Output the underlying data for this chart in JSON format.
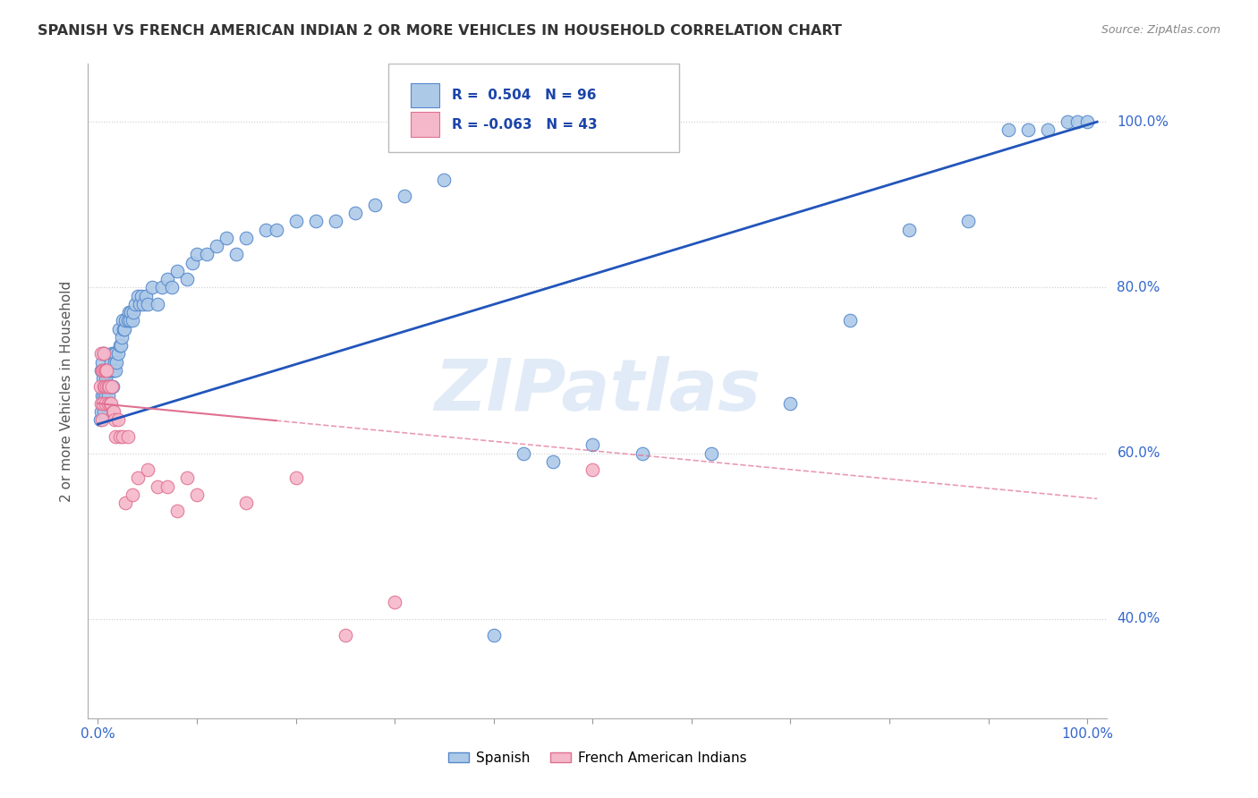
{
  "title": "SPANISH VS FRENCH AMERICAN INDIAN 2 OR MORE VEHICLES IN HOUSEHOLD CORRELATION CHART",
  "source": "Source: ZipAtlas.com",
  "ylabel": "2 or more Vehicles in Household",
  "yticks": [
    "40.0%",
    "60.0%",
    "80.0%",
    "100.0%"
  ],
  "ytick_vals": [
    0.4,
    0.6,
    0.8,
    1.0
  ],
  "legend_label_spanish": "Spanish",
  "legend_label_french": "French American Indians",
  "spanish_color": "#adc9e8",
  "french_color": "#f5b8cb",
  "spanish_edge": "#5588cc",
  "french_edge": "#e07090",
  "trend_spanish_color": "#2255bb",
  "trend_french_color": "#e07090",
  "background_color": "#ffffff",
  "grid_color": "#cccccc",
  "watermark": "ZIPatlas",
  "title_color": "#333333",
  "axis_label_color": "#3366cc",
  "spanish_R": 0.504,
  "spanish_N": 96,
  "french_R": -0.063,
  "french_N": 43,
  "sp_x": [
    0.002,
    0.003,
    0.003,
    0.004,
    0.004,
    0.005,
    0.005,
    0.005,
    0.006,
    0.006,
    0.006,
    0.007,
    0.007,
    0.007,
    0.008,
    0.008,
    0.009,
    0.009,
    0.01,
    0.01,
    0.011,
    0.011,
    0.012,
    0.012,
    0.013,
    0.013,
    0.014,
    0.015,
    0.015,
    0.016,
    0.016,
    0.017,
    0.018,
    0.018,
    0.019,
    0.02,
    0.021,
    0.022,
    0.023,
    0.024,
    0.025,
    0.026,
    0.027,
    0.028,
    0.03,
    0.031,
    0.032,
    0.033,
    0.035,
    0.036,
    0.038,
    0.04,
    0.042,
    0.044,
    0.046,
    0.048,
    0.05,
    0.055,
    0.06,
    0.065,
    0.07,
    0.075,
    0.08,
    0.09,
    0.095,
    0.1,
    0.11,
    0.12,
    0.13,
    0.14,
    0.15,
    0.17,
    0.18,
    0.2,
    0.22,
    0.24,
    0.26,
    0.28,
    0.31,
    0.35,
    0.4,
    0.43,
    0.46,
    0.5,
    0.55,
    0.62,
    0.7,
    0.76,
    0.82,
    0.88,
    0.92,
    0.94,
    0.96,
    0.98,
    0.99,
    1.0
  ],
  "sp_y": [
    0.64,
    0.65,
    0.7,
    0.67,
    0.71,
    0.66,
    0.69,
    0.72,
    0.65,
    0.67,
    0.72,
    0.66,
    0.68,
    0.7,
    0.67,
    0.69,
    0.66,
    0.68,
    0.67,
    0.7,
    0.68,
    0.7,
    0.68,
    0.7,
    0.68,
    0.71,
    0.72,
    0.68,
    0.7,
    0.7,
    0.72,
    0.71,
    0.7,
    0.72,
    0.71,
    0.72,
    0.75,
    0.73,
    0.73,
    0.74,
    0.76,
    0.75,
    0.75,
    0.76,
    0.76,
    0.77,
    0.76,
    0.77,
    0.76,
    0.77,
    0.78,
    0.79,
    0.78,
    0.79,
    0.78,
    0.79,
    0.78,
    0.8,
    0.78,
    0.8,
    0.81,
    0.8,
    0.82,
    0.81,
    0.83,
    0.84,
    0.84,
    0.85,
    0.86,
    0.84,
    0.86,
    0.87,
    0.87,
    0.88,
    0.88,
    0.88,
    0.89,
    0.9,
    0.91,
    0.93,
    0.38,
    0.6,
    0.59,
    0.61,
    0.6,
    0.6,
    0.66,
    0.76,
    0.87,
    0.88,
    0.99,
    0.99,
    0.99,
    1.0,
    1.0,
    1.0
  ],
  "fr_x": [
    0.002,
    0.003,
    0.003,
    0.004,
    0.004,
    0.005,
    0.005,
    0.006,
    0.006,
    0.007,
    0.007,
    0.008,
    0.008,
    0.009,
    0.009,
    0.01,
    0.01,
    0.011,
    0.012,
    0.013,
    0.014,
    0.015,
    0.016,
    0.017,
    0.018,
    0.02,
    0.022,
    0.025,
    0.028,
    0.03,
    0.035,
    0.04,
    0.05,
    0.06,
    0.07,
    0.08,
    0.09,
    0.1,
    0.15,
    0.2,
    0.25,
    0.3,
    0.5
  ],
  "fr_y": [
    0.68,
    0.72,
    0.66,
    0.7,
    0.64,
    0.66,
    0.7,
    0.68,
    0.72,
    0.68,
    0.7,
    0.66,
    0.7,
    0.68,
    0.7,
    0.66,
    0.68,
    0.68,
    0.66,
    0.66,
    0.68,
    0.65,
    0.65,
    0.64,
    0.62,
    0.64,
    0.62,
    0.62,
    0.54,
    0.62,
    0.55,
    0.57,
    0.58,
    0.56,
    0.56,
    0.53,
    0.57,
    0.55,
    0.54,
    0.57,
    0.38,
    0.42,
    0.58
  ],
  "xlim": [
    -0.01,
    1.02
  ],
  "ylim": [
    0.28,
    1.07
  ],
  "legend_r1": "R =  0.504   N = 96",
  "legend_r2": "R = -0.063   N = 43"
}
